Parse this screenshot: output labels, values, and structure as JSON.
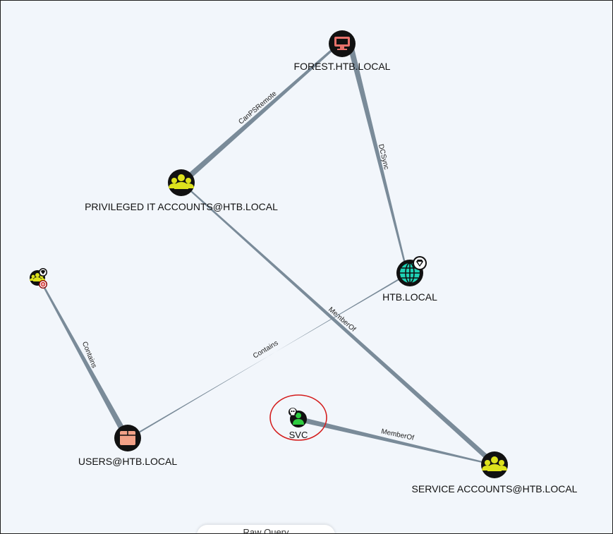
{
  "nodes": {
    "forest": {
      "label": "FOREST.HTB.LOCAL",
      "type": "computer",
      "icon": "computer-icon",
      "color": "#e8716a"
    },
    "privileged": {
      "label": "PRIVILEGED IT ACCOUNTS@HTB.LOCAL",
      "type": "group",
      "icon": "group-icon",
      "color": "#dde21d"
    },
    "domain": {
      "label": "HTB.LOCAL",
      "type": "domain",
      "icon": "globe-icon",
      "color": "#1fd3b6",
      "badge": "diamond-icon"
    },
    "small_group": {
      "label": "",
      "type": "group",
      "icon": "group-icon",
      "color": "#dde21d",
      "badges": [
        "diamond-icon",
        "target-icon"
      ]
    },
    "users": {
      "label": "USERS@HTB.LOCAL",
      "type": "container",
      "icon": "box-icon",
      "color": "#f2a187"
    },
    "svc": {
      "label": "SVC",
      "type": "user",
      "icon": "user-icon",
      "color": "#2ecc40",
      "badge": "skull-icon",
      "highlighted": true
    },
    "service": {
      "label": "SERVICE ACCOUNTS@HTB.LOCAL",
      "type": "group",
      "icon": "group-icon",
      "color": "#dde21d"
    }
  },
  "edges": {
    "canpsremote": {
      "label": "CanPSRemote",
      "from": "privileged",
      "to": "forest"
    },
    "dcsync": {
      "label": "DCSync",
      "from": "domain",
      "to": "forest"
    },
    "memberof_service": {
      "label": "MemberOf",
      "from": "service",
      "to": "privileged"
    },
    "contains_users": {
      "label": "Contains",
      "from": "domain",
      "to": "users"
    },
    "contains_small": {
      "label": "Contains",
      "from": "small_group",
      "to": "users"
    },
    "memberof_svc": {
      "label": "MemberOf",
      "from": "svc",
      "to": "service"
    }
  },
  "bottom_pill": {
    "label": "Raw Query"
  }
}
